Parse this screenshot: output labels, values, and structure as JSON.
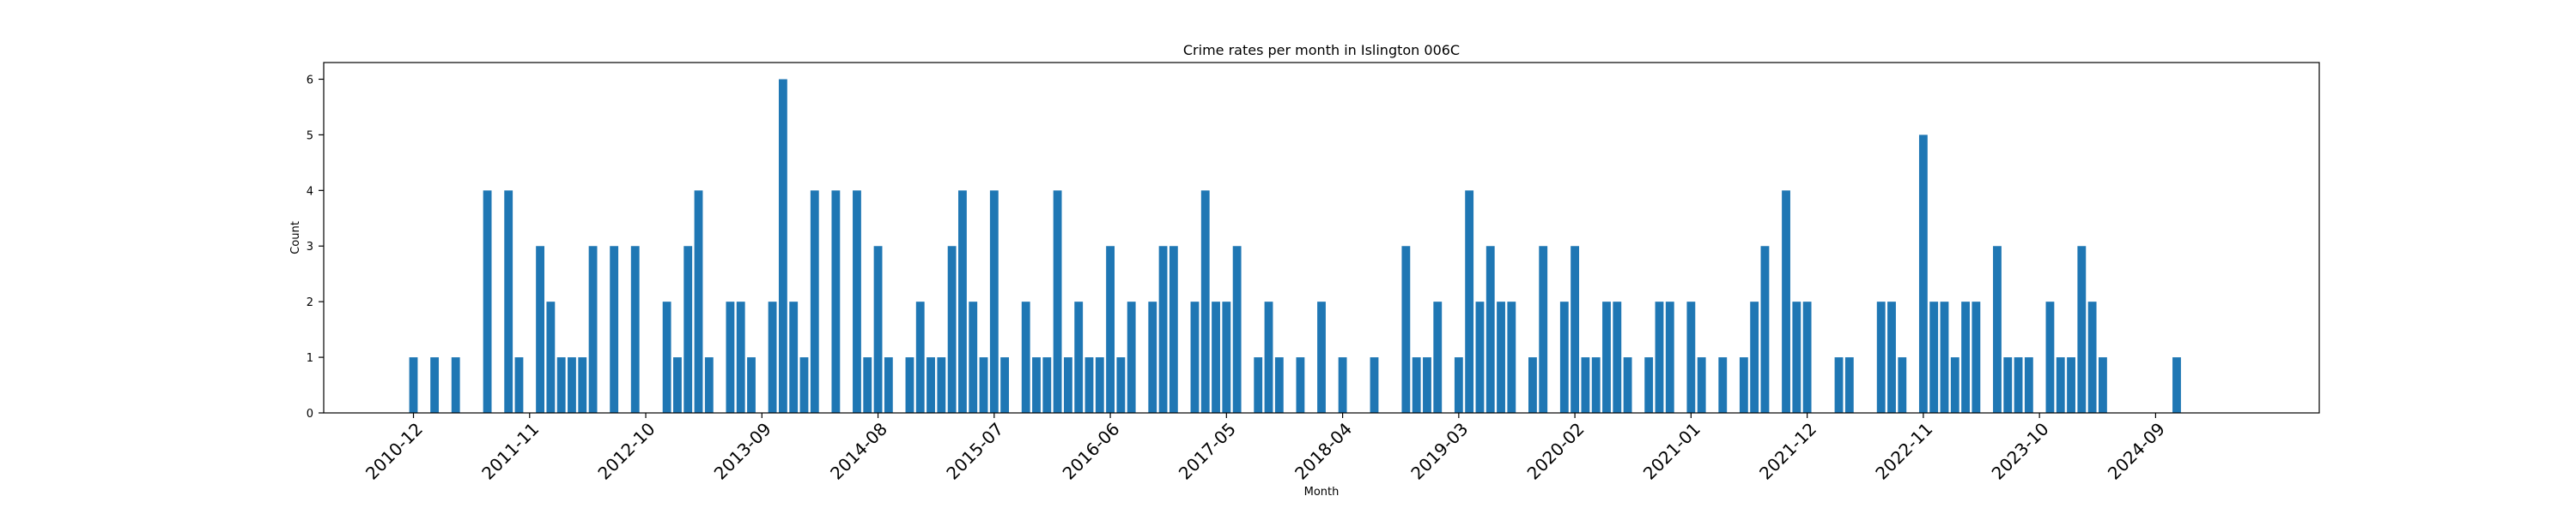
{
  "chart_data": {
    "type": "bar",
    "title": "Crime rates per month in Islington 006C",
    "xlabel": "Month",
    "ylabel": "Count",
    "ylim": [
      0,
      6.3
    ],
    "yticks": [
      0,
      1,
      2,
      3,
      4,
      5,
      6
    ],
    "xtick_labels": [
      "2010-12",
      "2011-11",
      "2012-10",
      "2013-09",
      "2014-08",
      "2015-07",
      "2016-06",
      "2017-05",
      "2018-04",
      "2019-03",
      "2020-02",
      "2021-01",
      "2021-12",
      "2022-11",
      "2023-10",
      "2024-09"
    ],
    "xlim_month_index": [
      -8.5,
      180.5
    ],
    "bar_color": "#1f77b4",
    "grid": false,
    "x": [
      "2010-12",
      "2011-02",
      "2011-04",
      "2011-07",
      "2011-09",
      "2011-10",
      "2011-12",
      "2012-01",
      "2012-02",
      "2012-03",
      "2012-04",
      "2012-05",
      "2012-07",
      "2012-09",
      "2012-12",
      "2013-01",
      "2013-02",
      "2013-03",
      "2013-04",
      "2013-06",
      "2013-07",
      "2013-08",
      "2013-10",
      "2013-11",
      "2013-12",
      "2014-01",
      "2014-02",
      "2014-04",
      "2014-06",
      "2014-07",
      "2014-08",
      "2014-09",
      "2014-11",
      "2014-12",
      "2015-01",
      "2015-02",
      "2015-03",
      "2015-04",
      "2015-05",
      "2015-06",
      "2015-07",
      "2015-08",
      "2015-10",
      "2015-11",
      "2015-12",
      "2016-01",
      "2016-02",
      "2016-03",
      "2016-04",
      "2016-05",
      "2016-06",
      "2016-07",
      "2016-08",
      "2016-10",
      "2016-11",
      "2016-12",
      "2017-02",
      "2017-03",
      "2017-04",
      "2017-05",
      "2017-06",
      "2017-08",
      "2017-09",
      "2017-10",
      "2017-12",
      "2018-02",
      "2018-04",
      "2018-07",
      "2018-10",
      "2018-11",
      "2018-12",
      "2019-01",
      "2019-03",
      "2019-04",
      "2019-05",
      "2019-06",
      "2019-07",
      "2019-08",
      "2019-10",
      "2019-11",
      "2020-01",
      "2020-02",
      "2020-03",
      "2020-04",
      "2020-05",
      "2020-06",
      "2020-07",
      "2020-09",
      "2020-10",
      "2020-11",
      "2021-01",
      "2021-02",
      "2021-04",
      "2021-06",
      "2021-07",
      "2021-08",
      "2021-10",
      "2021-11",
      "2021-12",
      "2022-03",
      "2022-04",
      "2022-07",
      "2022-08",
      "2022-09",
      "2022-11",
      "2022-12",
      "2023-01",
      "2023-02",
      "2023-03",
      "2023-04",
      "2023-06",
      "2023-07",
      "2023-08",
      "2023-09",
      "2023-11",
      "2023-12",
      "2024-01",
      "2024-02",
      "2024-03",
      "2024-04",
      "2024-11"
    ],
    "values": [
      1,
      1,
      1,
      4,
      4,
      1,
      3,
      2,
      1,
      1,
      1,
      3,
      3,
      3,
      2,
      1,
      3,
      4,
      1,
      2,
      2,
      1,
      2,
      6,
      2,
      1,
      4,
      4,
      4,
      1,
      3,
      1,
      1,
      2,
      1,
      1,
      3,
      4,
      2,
      1,
      4,
      1,
      2,
      1,
      1,
      4,
      1,
      2,
      1,
      1,
      3,
      1,
      2,
      2,
      3,
      3,
      2,
      4,
      2,
      2,
      3,
      1,
      2,
      1,
      1,
      2,
      1,
      1,
      3,
      1,
      1,
      2,
      1,
      4,
      2,
      3,
      2,
      2,
      1,
      3,
      2,
      3,
      1,
      1,
      2,
      2,
      1,
      1,
      2,
      2,
      2,
      1,
      1,
      1,
      2,
      3,
      4,
      2,
      2,
      1,
      1,
      2,
      2,
      1,
      5,
      2,
      2,
      1,
      2,
      2,
      3,
      1,
      1,
      1,
      2,
      1,
      1,
      3,
      2,
      1,
      1
    ]
  }
}
